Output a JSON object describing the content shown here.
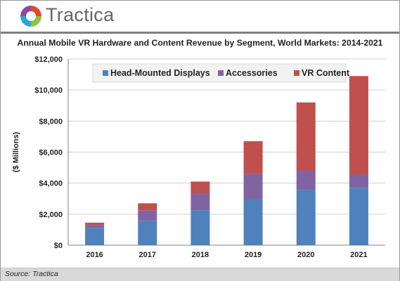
{
  "header": {
    "brand_name": "Tractica"
  },
  "chart_data": {
    "type": "bar",
    "stacked": true,
    "title": "Annual Mobile VR Hardware and Content Revenue by Segment, World Markets: 2014-2021",
    "xlabel": "",
    "ylabel": "($ Millions)",
    "categories": [
      "2016",
      "2017",
      "2018",
      "2019",
      "2020",
      "2021"
    ],
    "ylim": [
      0,
      12000
    ],
    "y_ticks": [
      "$0",
      "$2,000",
      "$4,000",
      "$6,000",
      "$8,000",
      "$10,000",
      "$12,000"
    ],
    "y_tick_values": [
      0,
      2000,
      4000,
      6000,
      8000,
      10000,
      12000
    ],
    "grid": "horizontal",
    "legend_position": "top",
    "series": [
      {
        "name": "Head-Mounted Displays",
        "color": "#4f81bd",
        "values": [
          1100,
          1550,
          2250,
          2900,
          3550,
          3700
        ]
      },
      {
        "name": "Accessories",
        "color": "#8064a2",
        "values": [
          200,
          700,
          1100,
          1700,
          1250,
          850
        ]
      },
      {
        "name": "VR Content",
        "color": "#c0504d",
        "values": [
          150,
          450,
          750,
          2100,
          4400,
          6350
        ]
      }
    ]
  },
  "footer": {
    "source": "Source: Tractica"
  }
}
